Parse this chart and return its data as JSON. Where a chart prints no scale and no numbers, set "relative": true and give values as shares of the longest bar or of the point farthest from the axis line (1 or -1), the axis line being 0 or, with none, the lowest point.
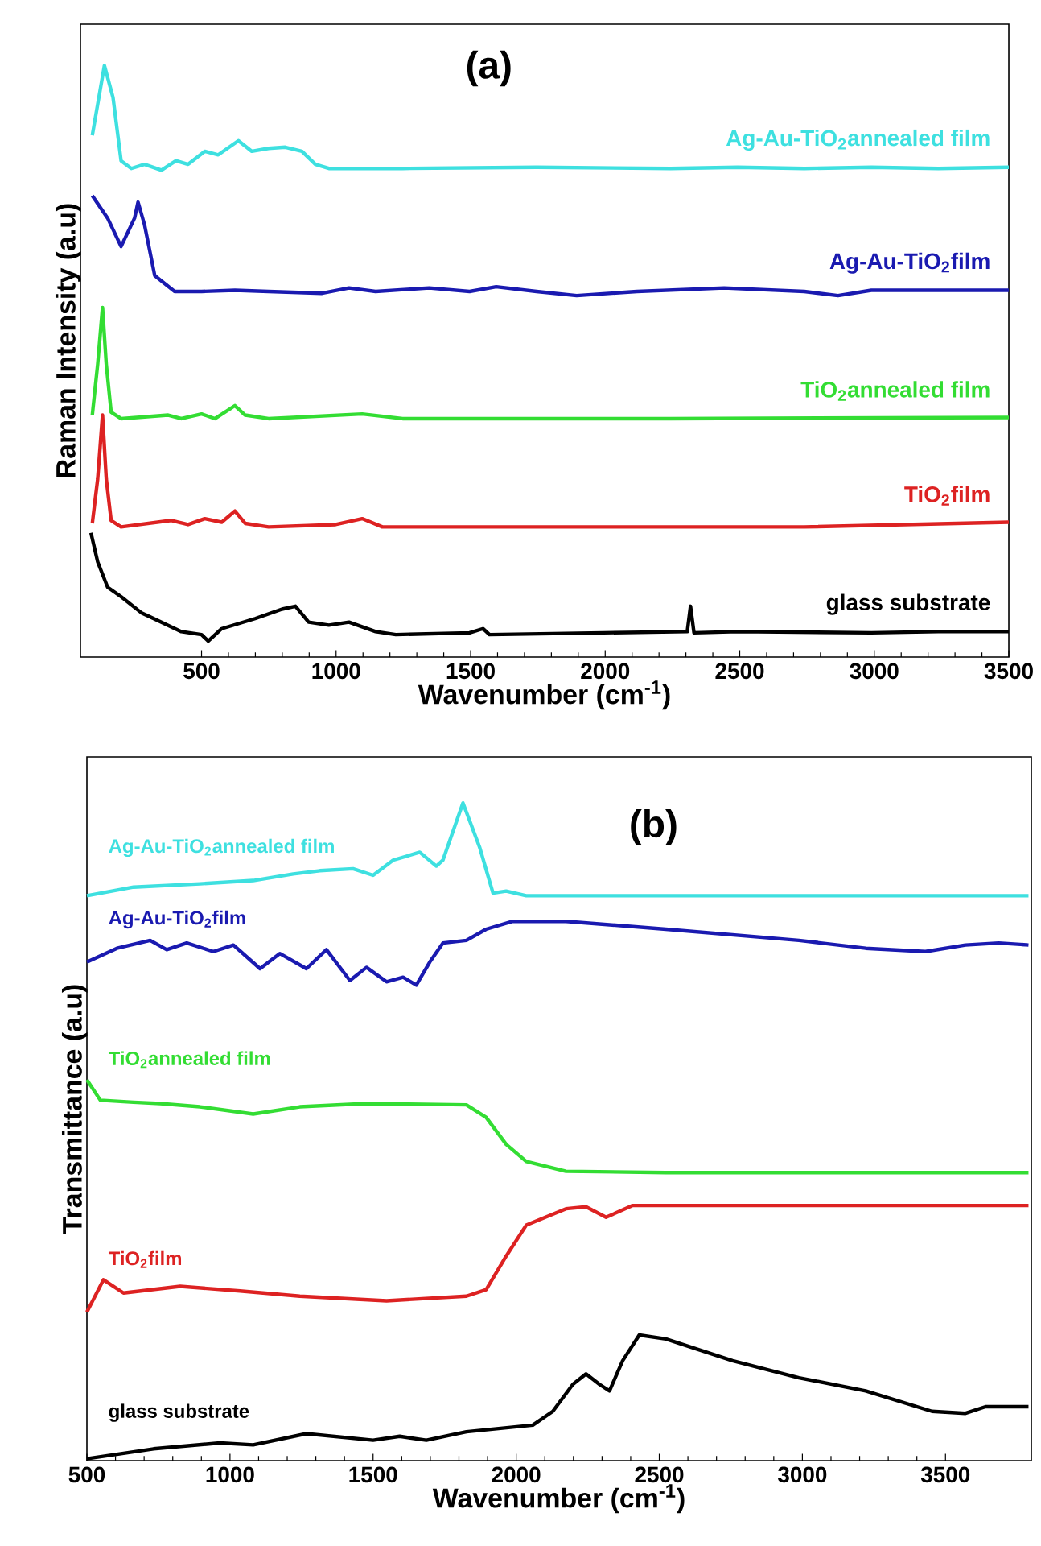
{
  "chart_data": [
    {
      "type": "line",
      "relative": true,
      "xlabel": "Wavenumber (cm$^{-1}$)",
      "ylabel": "Raman Intensity (a.u)",
      "xlim": [
        50,
        3500
      ],
      "xticks": [
        500,
        1000,
        1500,
        2000,
        2500,
        3000,
        3500
      ],
      "annotations": [
        "(a)"
      ],
      "series": [
        {
          "name": "Ag-Au-TiO$_{2}$annealed film",
          "color": "#3ee0e0",
          "x": [
            94,
            139,
            171,
            201,
            239,
            288,
            351,
            405,
            450,
            512,
            562,
            637,
            687,
            749,
            811,
            873,
            923,
            973,
            1247,
            1745,
            2243,
            2492,
            2740,
            2989,
            3238,
            3500
          ],
          "values": [
            0.882,
            1.0,
            0.946,
            0.839,
            0.826,
            0.833,
            0.823,
            0.839,
            0.833,
            0.855,
            0.849,
            0.873,
            0.855,
            0.86,
            0.862,
            0.855,
            0.833,
            0.826,
            0.826,
            0.828,
            0.826,
            0.828,
            0.826,
            0.828,
            0.826,
            0.828
          ]
        },
        {
          "name": "Ag-Au-TiO$_{2}$film",
          "color": "#1a1ab0",
          "x": [
            94,
            151,
            201,
            251,
            264,
            288,
            326,
            400,
            500,
            624,
            749,
            948,
            1048,
            1147,
            1346,
            1496,
            1595,
            1745,
            1894,
            2118,
            2442,
            2740,
            2865,
            2989,
            3238,
            3500
          ],
          "values": [
            0.78,
            0.742,
            0.694,
            0.742,
            0.769,
            0.731,
            0.645,
            0.618,
            0.618,
            0.62,
            0.618,
            0.615,
            0.624,
            0.618,
            0.624,
            0.618,
            0.626,
            0.618,
            0.611,
            0.618,
            0.624,
            0.618,
            0.611,
            0.62,
            0.62,
            0.62
          ]
        },
        {
          "name": "TiO$_{2}$annealed film",
          "color": "#33dd33",
          "x": [
            94,
            114,
            132,
            146,
            164,
            201,
            376,
            425,
            500,
            550,
            624,
            662,
            749,
            1097,
            1247,
            2243,
            3500
          ],
          "values": [
            0.409,
            0.495,
            0.591,
            0.495,
            0.414,
            0.403,
            0.409,
            0.403,
            0.411,
            0.403,
            0.425,
            0.409,
            0.403,
            0.411,
            0.403,
            0.403,
            0.405
          ]
        },
        {
          "name": "TiO$_{2}$film",
          "color": "#dd2222",
          "x": [
            94,
            114,
            132,
            146,
            164,
            201,
            388,
            450,
            512,
            575,
            624,
            662,
            749,
            998,
            1097,
            1172,
            1745,
            2740,
            3500
          ],
          "values": [
            0.226,
            0.301,
            0.409,
            0.301,
            0.231,
            0.22,
            0.231,
            0.224,
            0.234,
            0.228,
            0.247,
            0.226,
            0.22,
            0.224,
            0.234,
            0.22,
            0.22,
            0.22,
            0.228
          ]
        },
        {
          "name": "glass substrate",
          "color": "#000000",
          "x": [
            89,
            114,
            151,
            201,
            276,
            351,
            425,
            500,
            525,
            575,
            699,
            799,
            849,
            898,
            973,
            1048,
            1147,
            1222,
            1496,
            1546,
            1570,
            1994,
            2305,
            2317,
            2330,
            2492,
            2989,
            3238,
            3500
          ],
          "values": [
            0.21,
            0.161,
            0.118,
            0.102,
            0.075,
            0.059,
            0.043,
            0.038,
            0.027,
            0.048,
            0.065,
            0.081,
            0.086,
            0.059,
            0.054,
            0.059,
            0.043,
            0.038,
            0.041,
            0.048,
            0.038,
            0.041,
            0.043,
            0.086,
            0.041,
            0.043,
            0.041,
            0.043,
            0.043
          ]
        }
      ]
    },
    {
      "type": "line",
      "relative": true,
      "xlabel": "Wavenumber (cm$^{-1}$)",
      "ylabel": "Transmittance (a.u)",
      "xlim": [
        500,
        3800
      ],
      "xticks": [
        500,
        1000,
        1500,
        2000,
        2500,
        3000,
        3500
      ],
      "annotations": [
        "(b)"
      ],
      "series": [
        {
          "name": "Ag-Au-TiO$_{2}$annealed film",
          "color": "#3ee0e0",
          "x": [
            500,
            663,
            895,
            1081,
            1221,
            1314,
            1430,
            1500,
            1570,
            1663,
            1721,
            1744,
            1814,
            1872,
            1919,
            1965,
            2035,
            2291,
            2988,
            3790
          ],
          "values": [
            0.859,
            0.872,
            0.877,
            0.882,
            0.892,
            0.897,
            0.9,
            0.89,
            0.913,
            0.925,
            0.904,
            0.913,
            1.0,
            0.933,
            0.863,
            0.866,
            0.859,
            0.859,
            0.859,
            0.859
          ]
        },
        {
          "name": "Ag-Au-TiO$_{2}$film",
          "color": "#1a1ab0",
          "x": [
            500,
            605,
            721,
            779,
            849,
            942,
            1012,
            1105,
            1174,
            1267,
            1337,
            1419,
            1477,
            1547,
            1605,
            1651,
            1698,
            1744,
            1826,
            1895,
            1988,
            2174,
            2523,
            2988,
            3221,
            3430,
            3570,
            3686,
            3790
          ],
          "values": [
            0.758,
            0.779,
            0.791,
            0.777,
            0.787,
            0.774,
            0.784,
            0.748,
            0.771,
            0.748,
            0.777,
            0.73,
            0.75,
            0.728,
            0.735,
            0.723,
            0.758,
            0.787,
            0.791,
            0.808,
            0.82,
            0.82,
            0.808,
            0.791,
            0.779,
            0.774,
            0.784,
            0.787,
            0.784
          ]
        },
        {
          "name": "TiO$_{2}$annealed film",
          "color": "#33dd33",
          "x": [
            500,
            547,
            663,
            756,
            895,
            1081,
            1244,
            1477,
            1826,
            1895,
            1965,
            2035,
            2174,
            2523,
            3790
          ],
          "values": [
            0.579,
            0.548,
            0.545,
            0.543,
            0.538,
            0.527,
            0.538,
            0.543,
            0.541,
            0.522,
            0.481,
            0.455,
            0.44,
            0.438,
            0.438
          ]
        },
        {
          "name": "TiO$_{2}$film",
          "color": "#dd2222",
          "x": [
            500,
            558,
            628,
            826,
            1035,
            1244,
            1547,
            1826,
            1895,
            1965,
            2035,
            2174,
            2244,
            2314,
            2407,
            2988,
            3790
          ],
          "values": [
            0.226,
            0.275,
            0.255,
            0.265,
            0.258,
            0.25,
            0.243,
            0.25,
            0.26,
            0.311,
            0.358,
            0.383,
            0.386,
            0.37,
            0.388,
            0.388,
            0.388
          ]
        },
        {
          "name": "glass substrate",
          "color": "#000000",
          "x": [
            500,
            733,
            965,
            1081,
            1267,
            1500,
            1593,
            1686,
            1826,
            2058,
            2128,
            2198,
            2244,
            2291,
            2326,
            2372,
            2430,
            2523,
            2756,
            2988,
            3221,
            3453,
            3570,
            3640,
            3790
          ],
          "values": [
            0.003,
            0.018,
            0.027,
            0.024,
            0.041,
            0.031,
            0.037,
            0.031,
            0.044,
            0.054,
            0.075,
            0.116,
            0.132,
            0.116,
            0.106,
            0.152,
            0.191,
            0.185,
            0.152,
            0.126,
            0.106,
            0.075,
            0.072,
            0.082,
            0.082
          ]
        }
      ]
    }
  ]
}
